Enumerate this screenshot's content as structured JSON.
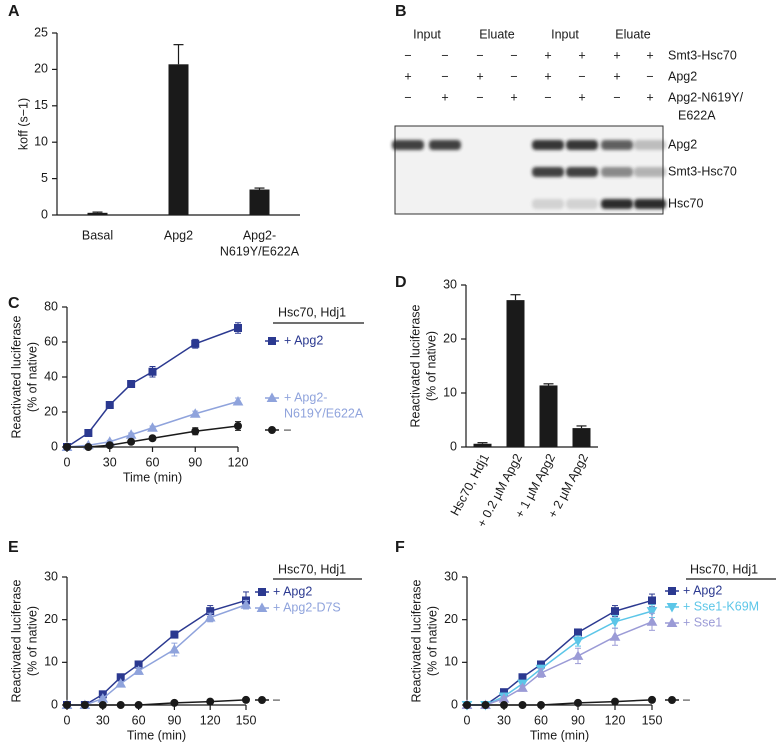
{
  "chart_data": [
    {
      "type": "bar",
      "panel_label": "A",
      "ylabel": "koff (s−1)",
      "categories": [
        "Basal",
        "Apg2",
        [
          "Apg2-",
          "N619Y/E622A"
        ]
      ],
      "values": [
        0.3,
        20.7,
        3.5
      ],
      "errors": [
        0.1,
        2.7,
        0.2
      ],
      "color": "#1a1a1a",
      "ylim": [
        0,
        25
      ],
      "yticks": [
        0,
        5,
        10,
        15,
        20,
        25
      ]
    },
    {
      "type": "line",
      "panel_label": "C",
      "legend_title": "Hsc70, Hdj1",
      "xlabel": "Time (min)",
      "ylabel": [
        "Reactivated luciferase",
        "(% of native)"
      ],
      "x": [
        0,
        15,
        30,
        45,
        60,
        90,
        120
      ],
      "series": [
        {
          "name": "+ Apg2",
          "color": "#2b3990",
          "marker": "square",
          "values": [
            0,
            8,
            24,
            36,
            43,
            59,
            68
          ],
          "errors": [
            0.5,
            1,
            2,
            2,
            3,
            2.5,
            3
          ]
        },
        {
          "name": [
            "+ Apg2-",
            "N619Y/E622A"
          ],
          "color": "#8fa3dc",
          "marker": "triangle",
          "values": [
            0,
            1,
            3,
            7,
            11,
            19,
            26
          ],
          "errors": [
            0.3,
            0.5,
            0.8,
            1,
            1,
            1.5,
            2
          ]
        },
        {
          "name": "–",
          "color": "#1a1a1a",
          "marker": "circle",
          "values": [
            0,
            0,
            1,
            3,
            5,
            9,
            12
          ],
          "errors": [
            0.3,
            0.3,
            0.5,
            0.8,
            1,
            2,
            2.5
          ]
        }
      ],
      "xlim": [
        0,
        120
      ],
      "xticks": [
        0,
        30,
        60,
        90,
        120
      ],
      "ylim": [
        0,
        80
      ],
      "yticks": [
        0,
        20,
        40,
        60,
        80
      ]
    },
    {
      "type": "bar",
      "panel_label": "D",
      "ylabel": [
        "Reactivated luciferase",
        "(% of native)"
      ],
      "categories": [
        "Hsc70, Hdj1",
        "+ 0.2 µM Apg2",
        "+ 1 µM Apg2",
        "+ 2 µM Apg2"
      ],
      "values": [
        0.6,
        27.2,
        11.4,
        3.5
      ],
      "errors": [
        0.2,
        1,
        0.3,
        0.4
      ],
      "color": "#1a1a1a",
      "ylim": [
        0,
        30
      ],
      "yticks": [
        0,
        10,
        20,
        30
      ]
    },
    {
      "type": "line",
      "panel_label": "E",
      "legend_title": "Hsc70, Hdj1",
      "xlabel": "Time (min)",
      "ylabel": [
        "Reactivated luciferase",
        "(% of native)"
      ],
      "x": [
        0,
        15,
        30,
        45,
        60,
        90,
        120,
        150
      ],
      "series": [
        {
          "name": "+ Apg2",
          "color": "#2b3990",
          "marker": "square",
          "values": [
            0,
            0,
            2.5,
            6.5,
            9.5,
            16.5,
            22,
            24.5
          ],
          "errors": [
            0.2,
            0.2,
            0.4,
            0.5,
            0.6,
            0.8,
            1.3,
            2
          ]
        },
        {
          "name": "+ Apg2-D7S",
          "color": "#8fa3dc",
          "marker": "triangle",
          "values": [
            0,
            0,
            1.5,
            5,
            8,
            13,
            20.5,
            23.5
          ],
          "errors": [
            0.2,
            0.2,
            0.4,
            0.5,
            0.8,
            1.5,
            1,
            1
          ]
        },
        {
          "name": "–",
          "color": "#1a1a1a",
          "marker": "circle",
          "values": [
            0,
            0,
            0,
            0,
            0,
            0.5,
            0.8,
            1.2
          ],
          "errors": [
            0.1,
            0.1,
            0.1,
            0.1,
            0.1,
            0.2,
            0.2,
            0.3
          ]
        }
      ],
      "xlim": [
        0,
        150
      ],
      "xticks": [
        0,
        30,
        60,
        90,
        120,
        150
      ],
      "ylim": [
        0,
        30
      ],
      "yticks": [
        0,
        10,
        20,
        30
      ]
    },
    {
      "type": "line",
      "panel_label": "F",
      "legend_title": "Hsc70, Hdj1",
      "xlabel": "Time (min)",
      "ylabel": [
        "Reactivated luciferase",
        "(% of native)"
      ],
      "x": [
        0,
        15,
        30,
        45,
        60,
        90,
        120,
        150
      ],
      "series": [
        {
          "name": "+ Apg2",
          "color": "#2b3990",
          "marker": "square",
          "values": [
            0,
            0,
            3,
            6.5,
            9.5,
            17,
            22,
            24.5
          ],
          "errors": [
            0.2,
            0.2,
            0.4,
            0.5,
            0.6,
            0.8,
            1.3,
            1.5
          ]
        },
        {
          "name": "+ Sse1-K69M",
          "color": "#5cc6e8",
          "marker": "triangle-down",
          "values": [
            0,
            0,
            2,
            5,
            8.5,
            15,
            19.5,
            22
          ],
          "errors": [
            0.2,
            0.2,
            0.4,
            0.6,
            0.8,
            1.2,
            1.5,
            1.5
          ]
        },
        {
          "name": "+ Sse1",
          "color": "#9b9bd6",
          "marker": "triangle",
          "values": [
            0,
            0,
            1.5,
            4,
            7.5,
            11.5,
            16,
            19.5
          ],
          "errors": [
            0.2,
            0.2,
            0.4,
            0.6,
            1,
            1.8,
            2,
            2
          ]
        },
        {
          "name": "–",
          "color": "#1a1a1a",
          "marker": "circle",
          "values": [
            0,
            0,
            0,
            0,
            0,
            0.5,
            0.8,
            1.2
          ],
          "errors": [
            0.1,
            0.1,
            0.1,
            0.1,
            0.1,
            0.2,
            0.2,
            0.3
          ]
        }
      ],
      "xlim": [
        0,
        150
      ],
      "xticks": [
        0,
        30,
        60,
        90,
        120,
        150
      ],
      "ylim": [
        0,
        30
      ],
      "yticks": [
        0,
        10,
        20,
        30
      ]
    }
  ],
  "gel": {
    "panel_label": "B",
    "headers": [
      "Input",
      "Eluate",
      "Input",
      "Eluate"
    ],
    "rows": [
      {
        "label": "Smt3-Hsc70",
        "signs": [
          "−",
          "−",
          "−",
          "−",
          "+",
          "+",
          "+",
          "+"
        ]
      },
      {
        "label": "Apg2",
        "signs": [
          "+",
          "−",
          "+",
          "−",
          "+",
          "−",
          "+",
          "−"
        ]
      },
      {
        "label": [
          "Apg2-N619Y/",
          "E622A"
        ],
        "signs": [
          "−",
          "+",
          "−",
          "+",
          "−",
          "+",
          "−",
          "+"
        ]
      }
    ],
    "band_labels": [
      "Apg2",
      "Smt3-Hsc70",
      "Hsc70"
    ]
  }
}
